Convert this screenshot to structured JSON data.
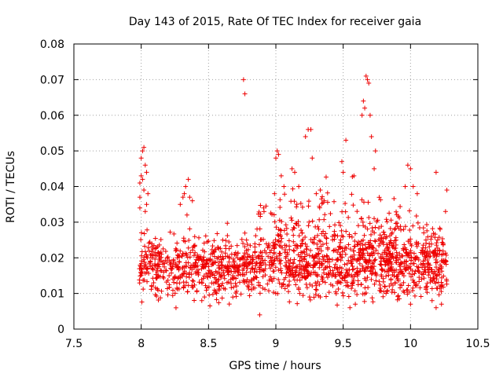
{
  "chart_data": {
    "type": "scatter",
    "title": "Day 143 of 2015, Rate Of TEC Index for receiver gaia",
    "xlabel": "GPS time / hours",
    "ylabel": "ROTI / TECUs",
    "xlim": [
      7.5,
      10.5
    ],
    "ylim": [
      0,
      0.08
    ],
    "xticks": [
      "7.5",
      "8",
      "8.5",
      "9",
      "9.5",
      "10",
      "10.5"
    ],
    "yticks": [
      "0",
      "0.01",
      "0.02",
      "0.03",
      "0.04",
      "0.05",
      "0.06",
      "0.07",
      "0.08"
    ],
    "grid": true,
    "marker": "+",
    "color": "#ee0000",
    "series": [
      {
        "name": "ROTI",
        "points": [
          [
            7.99,
            0.034
          ],
          [
            7.99,
            0.037
          ],
          [
            7.99,
            0.041
          ],
          [
            8.0,
            0.043
          ],
          [
            8.0,
            0.048
          ],
          [
            8.01,
            0.05
          ],
          [
            8.02,
            0.051
          ],
          [
            8.03,
            0.046
          ],
          [
            8.02,
            0.039
          ],
          [
            8.04,
            0.035
          ],
          [
            8.05,
            0.038
          ],
          [
            8.04,
            0.044
          ],
          [
            8.01,
            0.042
          ],
          [
            8.03,
            0.033
          ],
          [
            8.29,
            0.035
          ],
          [
            8.31,
            0.037
          ],
          [
            8.33,
            0.04
          ],
          [
            8.35,
            0.042
          ],
          [
            8.36,
            0.037
          ],
          [
            8.38,
            0.036
          ],
          [
            8.34,
            0.032
          ],
          [
            8.32,
            0.038
          ],
          [
            8.76,
            0.07
          ],
          [
            8.77,
            0.066
          ],
          [
            8.88,
            0.004
          ],
          [
            9.01,
            0.05
          ],
          [
            9.02,
            0.049
          ],
          [
            9.0,
            0.048
          ],
          [
            9.04,
            0.043
          ],
          [
            9.06,
            0.04
          ],
          [
            8.99,
            0.038
          ],
          [
            9.12,
            0.045
          ],
          [
            9.14,
            0.044
          ],
          [
            9.17,
            0.04
          ],
          [
            9.22,
            0.054
          ],
          [
            9.24,
            0.056
          ],
          [
            9.26,
            0.056
          ],
          [
            9.27,
            0.048
          ],
          [
            9.3,
            0.038
          ],
          [
            9.33,
            0.039
          ],
          [
            9.36,
            0.036
          ],
          [
            9.49,
            0.047
          ],
          [
            9.52,
            0.053
          ],
          [
            9.5,
            0.044
          ],
          [
            9.58,
            0.043
          ],
          [
            9.64,
            0.06
          ],
          [
            9.65,
            0.064
          ],
          [
            9.67,
            0.071
          ],
          [
            9.68,
            0.07
          ],
          [
            9.69,
            0.069
          ],
          [
            9.7,
            0.06
          ],
          [
            9.66,
            0.062
          ],
          [
            9.71,
            0.054
          ],
          [
            9.74,
            0.05
          ],
          [
            9.73,
            0.045
          ],
          [
            9.96,
            0.04
          ],
          [
            9.98,
            0.046
          ],
          [
            10.0,
            0.045
          ],
          [
            10.02,
            0.04
          ],
          [
            10.05,
            0.038
          ],
          [
            10.19,
            0.044
          ],
          [
            10.27,
            0.039
          ],
          [
            10.26,
            0.033
          ],
          [
            10.22,
            0.028
          ],
          [
            8.45,
            0.008
          ],
          [
            8.47,
            0.009
          ],
          [
            8.56,
            0.01
          ],
          [
            9.33,
            0.009
          ],
          [
            9.55,
            0.006
          ],
          [
            9.59,
            0.007
          ],
          [
            10.0,
            0.007
          ],
          [
            10.16,
            0.008
          ],
          [
            10.19,
            0.006
          ],
          [
            10.23,
            0.007
          ]
        ]
      }
    ],
    "bands": [
      {
        "x": [
          7.98,
          10.27
        ],
        "center": 0.0175,
        "spread": 0.009,
        "count": 1400
      },
      {
        "x": [
          8.85,
          9.9
        ],
        "center": 0.027,
        "spread": 0.012,
        "count": 220
      },
      {
        "x": [
          9.6,
          10.25
        ],
        "center": 0.024,
        "spread": 0.01,
        "count": 120
      }
    ]
  }
}
